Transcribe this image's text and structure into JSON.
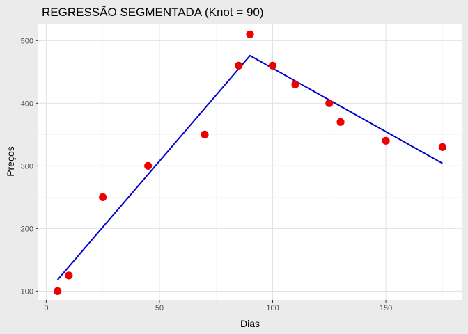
{
  "chart_data": {
    "type": "scatter",
    "title": "REGRESSÃO SEGMENTADA (Knot = 90)",
    "xlabel": "Dias",
    "ylabel": "Preços",
    "xlim": [
      -3.5,
      183.5
    ],
    "ylim": [
      86,
      527
    ],
    "x_ticks": [
      0,
      50,
      100,
      150
    ],
    "y_ticks": [
      100,
      200,
      300,
      400,
      500
    ],
    "grid": true,
    "points": [
      {
        "x": 5,
        "y": 100
      },
      {
        "x": 10,
        "y": 125
      },
      {
        "x": 25,
        "y": 250
      },
      {
        "x": 45,
        "y": 300
      },
      {
        "x": 70,
        "y": 350
      },
      {
        "x": 85,
        "y": 460
      },
      {
        "x": 90,
        "y": 510
      },
      {
        "x": 100,
        "y": 460
      },
      {
        "x": 110,
        "y": 430
      },
      {
        "x": 125,
        "y": 400
      },
      {
        "x": 130,
        "y": 370
      },
      {
        "x": 150,
        "y": 340
      },
      {
        "x": 175,
        "y": 330
      }
    ],
    "fit_line": [
      {
        "x": 5,
        "y": 118
      },
      {
        "x": 90,
        "y": 476
      },
      {
        "x": 175,
        "y": 304
      }
    ],
    "colors": {
      "point": "#ee0000",
      "line": "#0000cc",
      "panel": "#ffffff",
      "background": "#ebebeb",
      "grid_major": "#e3e3e3",
      "grid_minor": "#f2f2f2"
    }
  }
}
